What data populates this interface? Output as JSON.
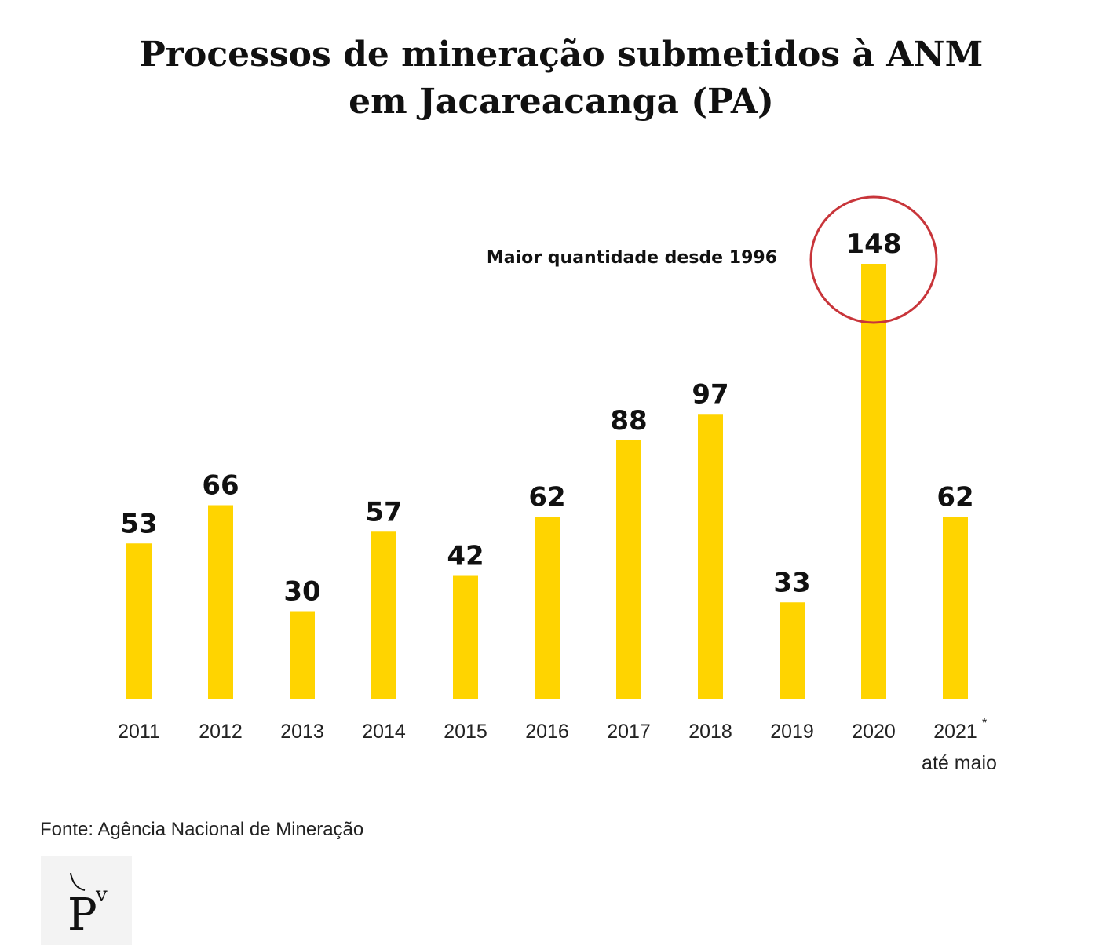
{
  "chart_data": {
    "type": "bar",
    "title_lines": [
      "Processos de mineração submetidos à ANM",
      "em Jacareacanga (PA)"
    ],
    "categories": [
      "2011",
      "2012",
      "2013",
      "2014",
      "2015",
      "2016",
      "2017",
      "2018",
      "2019",
      "2020",
      "2021"
    ],
    "category_marks": {
      "2021": "*"
    },
    "category_sublabels": {
      "2021": "até maio"
    },
    "values": [
      53,
      66,
      30,
      57,
      42,
      62,
      88,
      97,
      33,
      148,
      62
    ],
    "ylim": [
      0,
      148
    ],
    "grid": false,
    "bar_color": "#FFD400",
    "highlight": {
      "category": "2020",
      "text": "Maior quantidade desde 1996",
      "circle_color": "#C8353A"
    }
  },
  "source": "Fonte: Agência Nacional de Mineração",
  "logo": {
    "text": "PV",
    "icon": "publisher-logo"
  }
}
